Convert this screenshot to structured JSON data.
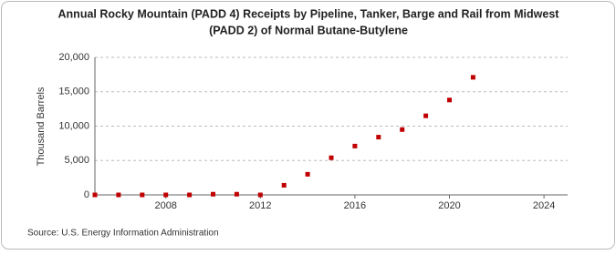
{
  "chart_data": {
    "type": "scatter",
    "title": "Annual Rocky Mountain (PADD 4) Receipts by Pipeline, Tanker, Barge and Rail from Midwest",
    "subtitle": "(PADD 2) of Normal Butane-Butylene",
    "y_label": "Thousand Barrels",
    "source": "Source: U.S. Energy Information Administration",
    "x": [
      2005,
      2006,
      2007,
      2008,
      2009,
      2010,
      2011,
      2012,
      2013,
      2014,
      2015,
      2016,
      2017,
      2018,
      2019,
      2020,
      2021
    ],
    "series": [
      {
        "name": "Receipts",
        "color": "#c00000",
        "values": [
          0,
          0,
          0,
          0,
          0,
          100,
          100,
          0,
          1400,
          3000,
          5400,
          7100,
          8400,
          9500,
          11500,
          13800,
          17100
        ]
      }
    ],
    "xlim": [
      2005,
      2025
    ],
    "xticks": [
      2008,
      2012,
      2016,
      2020,
      2024
    ],
    "ylim": [
      0,
      20000
    ],
    "yticks": [
      0,
      {
        "value": 5000,
        "label": "5,000"
      },
      {
        "value": 10000,
        "label": "10,000"
      },
      {
        "value": 15000,
        "label": "15,000"
      },
      {
        "value": 20000,
        "label": "20,000"
      }
    ],
    "grid": true
  }
}
